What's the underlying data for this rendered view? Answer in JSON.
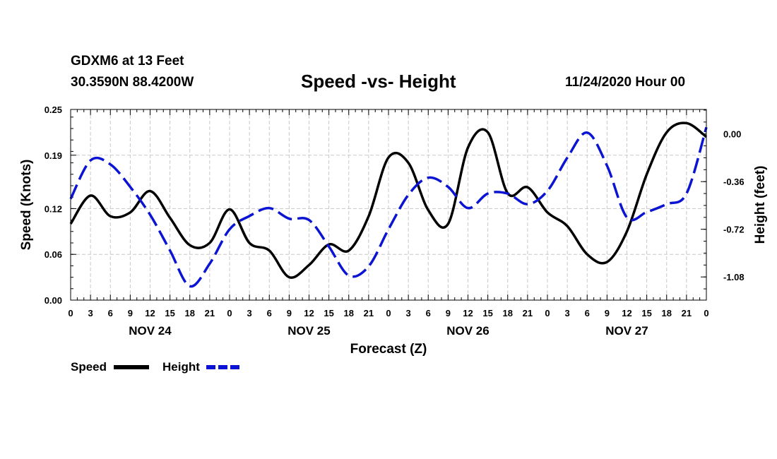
{
  "header": {
    "station": "GDXM6 at 13 Feet",
    "location": "30.3590N 88.4200W",
    "title": "Speed -vs- Height",
    "datetime": "11/24/2020 Hour 00"
  },
  "chart_data": {
    "type": "line",
    "title": "Speed -vs- Height",
    "xlabel": "Forecast (Z)",
    "ylabel": "Speed (Knots)",
    "y2label": "Height (feet)",
    "x_unit": "hours from 00Z Nov 24",
    "xlim": [
      0,
      96
    ],
    "ylim": [
      0,
      0.25
    ],
    "y2lim": [
      -1.255,
      0.185
    ],
    "grid": true,
    "x_tick_hours": [
      0,
      3,
      6,
      9,
      12,
      15,
      18,
      21,
      24,
      27,
      30,
      33,
      36,
      39,
      42,
      45,
      48,
      51,
      54,
      57,
      60,
      63,
      66,
      69,
      72,
      75,
      78,
      81,
      84,
      87,
      90,
      93,
      96
    ],
    "x_tick_labels": [
      "0",
      "3",
      "6",
      "9",
      "12",
      "15",
      "18",
      "21",
      "0",
      "3",
      "6",
      "9",
      "12",
      "15",
      "18",
      "21",
      "0",
      "3",
      "6",
      "9",
      "12",
      "15",
      "18",
      "21",
      "0",
      "3",
      "6",
      "9",
      "12",
      "15",
      "18",
      "21",
      "0"
    ],
    "day_labels": [
      {
        "hour": 12,
        "label": "NOV 24"
      },
      {
        "hour": 36,
        "label": "NOV 25"
      },
      {
        "hour": 60,
        "label": "NOV 26"
      },
      {
        "hour": 84,
        "label": "NOV 27"
      }
    ],
    "y_ticks": [
      0.0,
      0.06,
      0.12,
      0.19,
      0.25
    ],
    "y_tick_labels": [
      "0.00",
      "0.06",
      "0.12",
      "0.19",
      "0.25"
    ],
    "y2_ticks": [
      0.0,
      -0.36,
      -0.72,
      -1.08
    ],
    "y2_tick_labels": [
      "0.00",
      "-0.36",
      "-0.72",
      "-1.08"
    ],
    "series": [
      {
        "name": "Speed",
        "axis": "left",
        "color": "#000000",
        "style": "solid",
        "x": [
          0,
          3,
          6,
          9,
          12,
          15,
          18,
          21,
          24,
          27,
          30,
          33,
          36,
          39,
          42,
          45,
          48,
          51,
          54,
          57,
          60,
          63,
          66,
          69,
          72,
          75,
          78,
          81,
          84,
          87,
          90,
          93,
          96
        ],
        "values": [
          0.1,
          0.137,
          0.11,
          0.115,
          0.143,
          0.108,
          0.072,
          0.075,
          0.119,
          0.075,
          0.065,
          0.03,
          0.046,
          0.073,
          0.065,
          0.11,
          0.187,
          0.18,
          0.118,
          0.1,
          0.2,
          0.22,
          0.14,
          0.148,
          0.115,
          0.097,
          0.06,
          0.05,
          0.09,
          0.165,
          0.22,
          0.232,
          0.214
        ]
      },
      {
        "name": "Height",
        "axis": "right",
        "color": "#0a14d2",
        "style": "dashed",
        "x": [
          0,
          3,
          6,
          9,
          12,
          15,
          18,
          21,
          24,
          27,
          30,
          33,
          36,
          39,
          42,
          45,
          48,
          51,
          54,
          57,
          60,
          63,
          66,
          69,
          72,
          75,
          78,
          81,
          84,
          87,
          90,
          93,
          96
        ],
        "values": [
          -0.49,
          -0.2,
          -0.23,
          -0.4,
          -0.61,
          -0.88,
          -1.15,
          -0.98,
          -0.72,
          -0.62,
          -0.56,
          -0.64,
          -0.65,
          -0.85,
          -1.07,
          -1.0,
          -0.72,
          -0.46,
          -0.33,
          -0.4,
          -0.56,
          -0.45,
          -0.45,
          -0.53,
          -0.43,
          -0.18,
          0.01,
          -0.24,
          -0.63,
          -0.59,
          -0.53,
          -0.45,
          0.05
        ]
      }
    ],
    "legend": [
      "Speed",
      "Height"
    ]
  }
}
